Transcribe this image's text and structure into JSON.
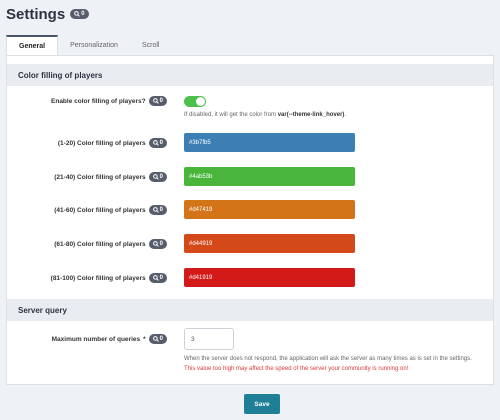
{
  "header": {
    "title": "Settings",
    "badge": "0"
  },
  "tabs": [
    {
      "label": "General",
      "active": true
    },
    {
      "label": "Personalization",
      "active": false
    },
    {
      "label": "Scroll",
      "active": false
    }
  ],
  "sections": {
    "color_filling": "Color filling of players",
    "server_query": "Server query"
  },
  "enable_color": {
    "label": "Enable color filling of players?",
    "badge": "0",
    "enabled": true,
    "help_prefix": "If disabled, it will get the color from ",
    "help_code": "var(--theme-link_hover)",
    "help_suffix": "."
  },
  "color_fields": [
    {
      "label": "(1-20) Color filling of players",
      "badge": "0",
      "value": "#3b7fb5",
      "color": "#3b7fb5"
    },
    {
      "label": "(21-40) Color filling of players",
      "badge": "0",
      "value": "#4ab53b",
      "color": "#4ab53b"
    },
    {
      "label": "(41-60) Color filling of players",
      "badge": "0",
      "value": "#d47419",
      "color": "#d47419"
    },
    {
      "label": "(61-80) Color filling of players",
      "badge": "0",
      "value": "#d44919",
      "color": "#d44919"
    },
    {
      "label": "(81-100) Color filling of players",
      "badge": "0",
      "value": "#d41919",
      "color": "#d41919"
    }
  ],
  "max_queries": {
    "label": "Maximum number of queries",
    "required_mark": "*",
    "badge": "0",
    "value": "3",
    "help": "When the server does not respond, the application will ask the server as many times as is set in the settings.",
    "warning": "This value too high may affect the speed of the server your community is running on!"
  },
  "save_label": "Save",
  "colors": {
    "accent": "#1f7f96",
    "toggle_on": "#4cc04a",
    "warning": "#e03b3b"
  }
}
